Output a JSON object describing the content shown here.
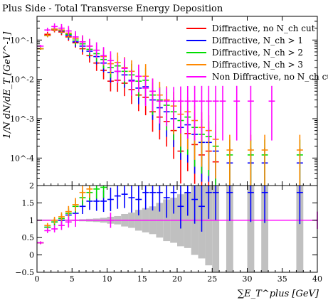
{
  "chart_data": {
    "type": "scatter",
    "title": "Plus Side - Total Transverse Energy Deposition",
    "xlabel": "∑E_T^plus [GeV]",
    "ylabel": "1/N dN/dE_T [GeV^-1]",
    "xlim": [
      0,
      40
    ],
    "upper": {
      "ylim": [
        2e-05,
        0.4
      ],
      "yscale": "log",
      "yticks": [
        {
          "v": 0.0001,
          "l": "10^-4"
        },
        {
          "v": 0.001,
          "l": "10^-3"
        },
        {
          "v": 0.01,
          "l": "10^-2"
        },
        {
          "v": 0.1,
          "l": "10^-1"
        }
      ]
    },
    "lower": {
      "ylim": [
        -0.5,
        2
      ],
      "yscale": "linear",
      "yticks": [
        {
          "v": -0.5,
          "l": "−0.5"
        },
        {
          "v": 0,
          "l": "0"
        },
        {
          "v": 0.5,
          "l": "0.5"
        },
        {
          "v": 1,
          "l": "1"
        },
        {
          "v": 1.5,
          "l": "1.5"
        },
        {
          "v": 2,
          "l": "2"
        }
      ]
    },
    "xticks": [
      0,
      5,
      10,
      15,
      20,
      25,
      30,
      35,
      40
    ],
    "legend_position": "top-right",
    "legend": [
      {
        "name": "Diffractive, no N_ch cut",
        "color": "#ff0000"
      },
      {
        "name": "Diffractive, N_ch > 1",
        "color": "#0000ff"
      },
      {
        "name": "Diffractive, N_ch > 2",
        "color": "#00dd00"
      },
      {
        "name": "Diffractive, N_ch > 3",
        "color": "#ff8800"
      },
      {
        "name": "Non Diffractive, no N_ch cut",
        "color": "#ff00ff"
      }
    ],
    "series": [
      {
        "name": "Diffractive, no N_ch cut",
        "color": "#ff0000",
        "x": [
          0.5,
          1.5,
          2.5,
          3.5,
          4.5,
          5.5,
          6.5,
          7.5,
          8.5,
          9.5,
          10.5,
          11.5,
          12.5,
          13.5,
          14.5,
          15.5,
          16.5,
          17.5,
          18.5,
          19.5,
          20.5,
          21.5,
          22.5,
          23.5,
          24.5,
          25.5
        ],
        "y": [
          0.06,
          0.14,
          0.18,
          0.16,
          0.12,
          0.085,
          0.06,
          0.04,
          0.026,
          0.017,
          0.009,
          0.0095,
          0.008,
          0.0055,
          0.004,
          0.0035,
          0.0015,
          0.0011,
          0.00085,
          0.0005,
          0.00015,
          0.00042,
          0.00022,
          0.00012,
          0.00015,
          8e-05
        ]
      },
      {
        "name": "Diffractive, N_ch > 1",
        "color": "#0000ff",
        "x": [
          0.5,
          1.5,
          2.5,
          3.5,
          4.5,
          5.5,
          6.5,
          7.5,
          8.5,
          9.5,
          10.5,
          11.5,
          12.5,
          13.5,
          14.5,
          15.5,
          16.5,
          17.5,
          18.5,
          19.5,
          20.5,
          21.5,
          22.5,
          23.5,
          24.5,
          25.5,
          27.5,
          30.5,
          32.5,
          37.5
        ],
        "y": [
          0.06,
          0.13,
          0.19,
          0.17,
          0.13,
          0.09,
          0.07,
          0.052,
          0.038,
          0.026,
          0.015,
          0.016,
          0.013,
          0.0095,
          0.006,
          0.0065,
          0.003,
          0.0019,
          0.0015,
          0.001,
          0.0006,
          0.0007,
          0.0004,
          0.00025,
          0.00025,
          0.00015,
          7.5e-05,
          7.5e-05,
          7.5e-05,
          7.5e-05
        ]
      },
      {
        "name": "Diffractive, N_ch > 2",
        "color": "#00dd00",
        "x": [
          0.5,
          1.5,
          2.5,
          3.5,
          4.5,
          5.5,
          6.5,
          7.5,
          8.5,
          9.5,
          10.5,
          11.5,
          12.5,
          13.5,
          14.5,
          15.5,
          16.5,
          17.5,
          18.5,
          19.5,
          20.5,
          21.5,
          22.5,
          23.5,
          24.5,
          25.5,
          27.5,
          30.5,
          32.5,
          37.5
        ],
        "y": [
          0.06,
          0.13,
          0.19,
          0.175,
          0.14,
          0.1,
          0.08,
          0.058,
          0.045,
          0.032,
          0.02,
          0.022,
          0.016,
          0.013,
          0.009,
          0.0095,
          0.004,
          0.003,
          0.0022,
          0.0015,
          0.0009,
          0.0011,
          0.0006,
          0.0004,
          0.00035,
          0.0002,
          0.00012,
          0.00012,
          0.00012,
          0.00012
        ]
      },
      {
        "name": "Diffractive, N_ch > 3",
        "color": "#ff8800",
        "x": [
          0.5,
          1.5,
          2.5,
          3.5,
          4.5,
          5.5,
          6.5,
          7.5,
          8.5,
          9.5,
          10.5,
          11.5,
          12.5,
          13.5,
          14.5,
          15.5,
          16.5,
          17.5,
          18.5,
          19.5,
          20.5,
          21.5,
          22.5,
          23.5,
          24.5,
          25.5,
          27.5,
          30.5,
          32.5,
          37.5
        ],
        "y": [
          0.06,
          0.13,
          0.19,
          0.18,
          0.15,
          0.11,
          0.09,
          0.07,
          0.055,
          0.038,
          0.025,
          0.027,
          0.02,
          0.016,
          0.012,
          0.012,
          0.005,
          0.004,
          0.003,
          0.0021,
          0.0013,
          0.0015,
          0.0009,
          0.0006,
          0.0005,
          0.0003,
          0.00016,
          0.00016,
          0.00016,
          0.00016
        ]
      },
      {
        "name": "Non Diffractive, no N_ch cut",
        "color": "#ff00ff",
        "x": [
          0.5,
          1.5,
          2.5,
          3.5,
          4.5,
          5.5,
          6.5,
          7.5,
          8.5,
          9.5,
          10.5,
          11.5,
          12.5,
          13.5,
          14.5,
          15.5,
          16.5,
          17.5,
          18.5,
          19.5,
          20.5,
          21.5,
          22.5,
          23.5,
          24.5,
          25.5,
          26.5,
          28.5,
          30.5,
          33.5
        ],
        "y": [
          0.07,
          0.18,
          0.22,
          0.2,
          0.17,
          0.12,
          0.09,
          0.07,
          0.055,
          0.04,
          0.03,
          0.016,
          0.019,
          0.009,
          0.012,
          0.006,
          0.005,
          0.0028,
          0.0028,
          0.0028,
          0.0028,
          0.0028,
          0.0028,
          0.0028,
          0.0028,
          0.0028,
          0.0028,
          0.0028,
          0.0028,
          0.0028
        ]
      }
    ],
    "ratio_series": [
      {
        "name": "Diffractive, N_ch > 1",
        "color": "#0000ff",
        "x": [
          0.5,
          1.5,
          2.5,
          3.5,
          4.5,
          5.5,
          6.5,
          7.5,
          8.5,
          9.5,
          10.5,
          11.5,
          12.5,
          13.5,
          14.5,
          15.5,
          16.5,
          17.5,
          18.5,
          19.5,
          20.5,
          21.5,
          22.5,
          23.5,
          24.5,
          25.5,
          27.5,
          30.5,
          32.5,
          37.5
        ],
        "y": [
          0.35,
          0.8,
          0.95,
          1.0,
          1.15,
          1.2,
          1.4,
          1.55,
          1.55,
          1.55,
          1.6,
          1.7,
          1.75,
          1.65,
          1.6,
          1.8,
          1.8,
          1.8,
          1.65,
          1.8,
          1.4,
          1.8,
          1.6,
          1.4,
          1.8,
          1.8,
          1.8,
          1.8,
          1.8,
          1.8
        ]
      },
      {
        "name": "Diffractive, N_ch > 2",
        "color": "#00dd00",
        "x": [
          0.5,
          1.5,
          2.5,
          3.5,
          4.5,
          5.5,
          6.5,
          7.5,
          8.5,
          9.5
        ],
        "y": [
          0.35,
          0.8,
          0.95,
          1.05,
          1.2,
          1.4,
          1.65,
          1.8,
          1.9,
          1.95
        ]
      },
      {
        "name": "Diffractive, N_ch > 3",
        "color": "#ff8800",
        "x": [
          0.5,
          1.5,
          2.5,
          3.5,
          4.5,
          5.5,
          6.5,
          7.5
        ],
        "y": [
          0.35,
          0.85,
          1.0,
          1.1,
          1.25,
          1.45,
          1.8,
          1.9
        ]
      },
      {
        "name": "Non Diffractive, no N_ch cut",
        "color": "#ff00ff",
        "x": [
          0.5,
          1.5,
          2.5,
          3.5,
          4.5,
          5.5,
          10.5,
          40
        ],
        "y": [
          0.35,
          0.7,
          0.75,
          0.85,
          0.95,
          1.0,
          1.0,
          1.0
        ]
      }
    ],
    "ratio_band": {
      "color": "#c0c0c0",
      "x": [
        0.5,
        1.5,
        2.5,
        3.5,
        4.5,
        5.5,
        6.5,
        7.5,
        8.5,
        9.5,
        10.5,
        11.5,
        12.5,
        13.5,
        14.5,
        15.5,
        16.5,
        17.5,
        18.5,
        19.5,
        20.5,
        21.5,
        22.5,
        23.5,
        24.5,
        25.5,
        26.5,
        27.5,
        28.5,
        29.5,
        30.5,
        31.5,
        32.5,
        33.5,
        34.5,
        35.5,
        36.5,
        37.5,
        38.5,
        39.5
      ],
      "half_width": [
        0.02,
        0.02,
        0.02,
        0.02,
        0.02,
        0.02,
        0.03,
        0.04,
        0.05,
        0.07,
        0.1,
        0.12,
        0.18,
        0.22,
        0.3,
        0.35,
        0.4,
        0.5,
        0.6,
        0.65,
        0.75,
        0.8,
        1.0,
        1.1,
        1.3,
        1.5,
        0,
        1.5,
        0,
        0,
        1.5,
        0,
        1.5,
        0,
        0,
        0,
        0,
        1.5,
        0,
        0
      ]
    }
  }
}
